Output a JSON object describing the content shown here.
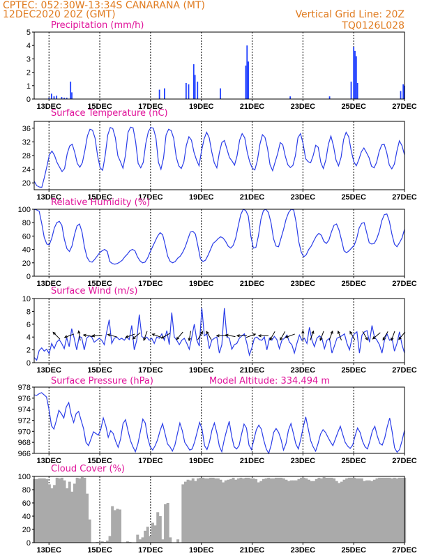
{
  "header": {
    "left1": "CPTEC:  052:30W-13:34S  CANARANA (MT)",
    "left2": "12DEC2020 20Z (GMT)",
    "right1": "Vertical Grid Line: 20Z",
    "right2": "TQ0126L028"
  },
  "model_altitude": "Model Altitude: 334.494 m",
  "x_ticks": [
    "13DEC",
    "15DEC",
    "17DEC",
    "19DEC",
    "21DEC",
    "23DEC",
    "25DEC",
    "27DEC"
  ],
  "colors": {
    "orange": "#e07b1f",
    "magenta": "#e0139a",
    "blue": "#2a3de8",
    "gray": "#aaaaaa"
  },
  "chart_data": [
    {
      "type": "bar",
      "title": "Precipitation (mm/h)",
      "ylim": [
        0,
        5
      ],
      "yticks": [
        0,
        1,
        2,
        3,
        4,
        5
      ],
      "x": [
        13.0,
        13.1,
        13.2,
        13.3,
        13.5,
        13.6,
        13.7,
        13.85,
        13.9,
        17.35,
        17.55,
        18.4,
        18.5,
        18.7,
        18.75,
        18.85,
        19.75,
        20.75,
        20.8,
        20.85,
        22.5,
        24.05,
        24.9,
        25.0,
        25.05,
        25.1,
        25.15,
        26.85,
        26.95,
        27.0
      ],
      "values": [
        0.1,
        0.4,
        0.2,
        0.25,
        0.15,
        0.1,
        0.1,
        1.3,
        0.5,
        0.7,
        0.8,
        1.2,
        1.1,
        2.6,
        1.8,
        1.3,
        0.8,
        2.5,
        4.0,
        2.8,
        0.2,
        0.2,
        1.3,
        3.9,
        3.6,
        3.2,
        1.2,
        0.6,
        1.1,
        1.0
      ]
    },
    {
      "type": "line",
      "title": "Surface Temperature (nC)",
      "ylim": [
        18,
        38
      ],
      "yticks": [
        20,
        24,
        28,
        32,
        36
      ],
      "series": [
        {
          "values": [
            20.5,
            19.2,
            18.8,
            18.7,
            21.5,
            24.8,
            28.2,
            29.3,
            28.1,
            26.0,
            24.6,
            23.3,
            24.2,
            28.5,
            30.8,
            31.3,
            28.9,
            25.7,
            24.6,
            25.9,
            29.5,
            33.8,
            35.7,
            35.4,
            33.1,
            28.0,
            24.4,
            23.7,
            28.0,
            34.0,
            36.2,
            35.9,
            33.2,
            27.9,
            26.2,
            24.3,
            28.1,
            34.8,
            36.3,
            36.1,
            32.0,
            25.7,
            24.4,
            26.0,
            31.5,
            35.0,
            36.2,
            36.0,
            33.1,
            26.0,
            24.0,
            27.3,
            34.0,
            35.7,
            35.3,
            33.1,
            27.6,
            25.0,
            24.2,
            26.1,
            31.0,
            33.5,
            32.5,
            29.0,
            26.7,
            25.0,
            29.4,
            32.9,
            34.8,
            33.2,
            29.1,
            25.9,
            24.4,
            28.8,
            31.8,
            32.4,
            29.9,
            27.4,
            26.4,
            25.2,
            28.0,
            32.5,
            34.4,
            33.2,
            29.0,
            26.1,
            24.3,
            23.8,
            26.6,
            31.3,
            34.1,
            33.3,
            30.1,
            25.3,
            23.6,
            26.1,
            28.6,
            31.8,
            31.2,
            27.8,
            25.3,
            24.5,
            25.1,
            28.0,
            33.2,
            34.4,
            31.6,
            27.1,
            26.2,
            25.9,
            28.0,
            31.0,
            30.4,
            26.0,
            24.2,
            26.8,
            31.3,
            33.7,
            30.8,
            26.7,
            25.0,
            27.5,
            32.7,
            34.8,
            33.5,
            29.4,
            26.2,
            25.0,
            26.8,
            29.1,
            30.2,
            28.9,
            27.4,
            24.9,
            24.4,
            26.0,
            29.1,
            31.1,
            31.3,
            28.9,
            25.2,
            24.1,
            25.5,
            29.3,
            32.3,
            30.9,
            28.2
          ]
        }
      ]
    },
    {
      "type": "line",
      "title": "Relative Humidity (%)",
      "ylim": [
        0,
        100
      ],
      "yticks": [
        0,
        20,
        40,
        60,
        80,
        100
      ],
      "series": [
        {
          "values": [
            100,
            99,
            97,
            79,
            58,
            48,
            47,
            57,
            72,
            80,
            82,
            76,
            55,
            41,
            37,
            45,
            62,
            75,
            78,
            66,
            43,
            28,
            22,
            21,
            25,
            30,
            35,
            38,
            40,
            37,
            22,
            19,
            18,
            19,
            21,
            24,
            29,
            33,
            38,
            40,
            38,
            29,
            23,
            20,
            21,
            27,
            36,
            44,
            52,
            60,
            65,
            62,
            47,
            30,
            22,
            20,
            22,
            27,
            30,
            36,
            44,
            55,
            66,
            67,
            63,
            45,
            26,
            22,
            24,
            31,
            40,
            49,
            52,
            56,
            59,
            57,
            52,
            45,
            42,
            46,
            57,
            75,
            92,
            100,
            98,
            90,
            60,
            42,
            43,
            60,
            85,
            98,
            100,
            95,
            80,
            56,
            45,
            44,
            57,
            70,
            85,
            95,
            100,
            99,
            80,
            52,
            36,
            29,
            32,
            40,
            45,
            53,
            60,
            64,
            61,
            52,
            49,
            54,
            66,
            76,
            78,
            69,
            54,
            38,
            35,
            38,
            42,
            46,
            56,
            72,
            79,
            80,
            65,
            50,
            48,
            49,
            56,
            67,
            83,
            92,
            93,
            82,
            63,
            48,
            44,
            50,
            57,
            70
          ]
        }
      ]
    },
    {
      "type": "line",
      "title": "Surface Wind (m/s)",
      "ylim": [
        0,
        10
      ],
      "yticks": [
        0,
        2,
        4,
        6,
        8,
        10
      ],
      "series": [
        {
          "values": [
            0.8,
            0.4,
            1.9,
            2.3,
            1.8,
            2.1,
            1.4,
            3.0,
            2.2,
            3.2,
            3.6,
            3.0,
            2.2,
            3.9,
            2.5,
            5.3,
            3.8,
            2.0,
            4.1,
            3.9,
            2.0,
            3.8,
            4.2,
            4.0,
            3.2,
            3.5,
            3.8,
            3.5,
            2.8,
            4.8,
            6.7,
            3.0,
            3.8,
            4.0,
            3.6,
            3.8,
            3.5,
            4.0,
            3.6,
            5.8,
            2.0,
            3.5,
            7.5,
            4.1,
            3.8,
            4.0,
            3.5,
            3.8,
            3.0,
            4.0,
            3.8,
            4.5,
            3.5,
            5.0,
            2.8,
            7.8,
            4.0,
            3.5,
            2.8,
            3.5,
            3.8,
            3.0,
            2.1,
            4.0,
            6.0,
            3.5,
            2.6,
            8.5,
            4.2,
            4.5,
            2.2,
            3.5,
            3.8,
            4.0,
            1.5,
            2.8,
            8.5,
            4.0,
            3.8,
            2.1,
            2.8,
            3.0,
            3.8,
            4.2,
            4.5,
            3.0,
            1.2,
            2.3,
            3.8,
            4.0,
            3.6,
            3.5,
            4.0,
            2.0,
            3.8,
            3.5,
            4.1,
            3.6,
            2.2,
            3.5,
            3.8,
            4.3,
            3.2,
            2.8,
            1.5,
            3.0,
            4.3,
            3.5,
            3.8,
            3.0,
            5.5,
            3.5,
            2.5,
            3.8,
            4.2,
            3.8,
            2.2,
            3.5,
            3.8,
            1.5,
            2.6,
            3.8,
            4.0,
            4.2,
            4.5,
            3.0,
            2.0,
            3.8,
            4.5,
            4.8,
            1.5,
            4.3,
            4.8,
            5.0,
            3.2,
            5.8,
            4.0,
            3.5,
            2.8,
            1.5,
            3.5,
            4.5,
            3.5,
            3.8,
            1.8,
            3.0,
            4.8,
            2.8,
            1.5
          ]
        }
      ],
      "arrow_days": [
        13.3,
        13.8,
        14.2,
        14.55,
        14.9,
        15.5,
        16.2,
        16.45,
        16.8,
        17.25,
        17.6,
        18.15,
        18.55,
        18.95,
        19.3,
        19.8,
        20.15,
        20.6,
        20.95,
        21.45,
        21.8,
        22.2,
        22.5,
        23.0,
        23.35,
        23.75,
        24.1,
        24.45,
        24.95,
        25.45,
        25.9,
        26.25,
        26.55,
        26.9
      ],
      "arrow_dirs": [
        135,
        200,
        100,
        170,
        180,
        165,
        200,
        220,
        250,
        160,
        210,
        230,
        260,
        60,
        120,
        180,
        170,
        180,
        20,
        180,
        240,
        240,
        200,
        90,
        70,
        250,
        70,
        110,
        120,
        300,
        220,
        240,
        250,
        230
      ]
    },
    {
      "type": "line",
      "title": "Surface Pressure (hPa)",
      "ylim": [
        966,
        978
      ],
      "yticks": [
        966,
        968,
        970,
        972,
        974,
        976,
        978
      ],
      "series": [
        {
          "values": [
            976.6,
            976.5,
            976.8,
            977.0,
            976.6,
            976.2,
            974.0,
            971.0,
            970.4,
            972.0,
            973.8,
            973.2,
            972.4,
            974.4,
            975.2,
            973.0,
            971.6,
            973.2,
            973.6,
            972.0,
            970.5,
            968.0,
            967.4,
            968.6,
            969.9,
            969.6,
            969.3,
            970.4,
            972.4,
            971.0,
            968.9,
            970.1,
            969.6,
            968.2,
            967.1,
            968.6,
            971.4,
            972.1,
            970.1,
            968.3,
            967.2,
            966.3,
            967.7,
            969.9,
            972.2,
            971.5,
            968.8,
            967.2,
            966.6,
            967.4,
            968.5,
            970.1,
            971.4,
            969.6,
            967.7,
            967.2,
            966.4,
            967.5,
            969.5,
            971.5,
            970.1,
            968.0,
            967.3,
            966.6,
            966.8,
            968.1,
            969.8,
            971.6,
            970.4,
            967.4,
            966.7,
            968.0,
            970.2,
            971.5,
            969.7,
            967.3,
            966.3,
            968.5,
            970.2,
            971.8,
            969.1,
            967.2,
            966.8,
            967.4,
            969.5,
            971.3,
            970.6,
            967.5,
            966.7,
            968.5,
            970.3,
            971.1,
            970.4,
            968.4,
            966.8,
            966.0,
            967.5,
            969.8,
            970.5,
            969.8,
            968.5,
            966.6,
            967.8,
            970.2,
            971.4,
            969.6,
            967.7,
            966.8,
            968.6,
            970.8,
            972.6,
            970.5,
            968.3,
            967.2,
            966.4,
            967.8,
            969.5,
            970.3,
            969.8,
            968.9,
            968.1,
            967.4,
            968.6,
            969.8,
            970.9,
            969.4,
            968.0,
            967.3,
            966.9,
            967.5,
            969.2,
            970.6,
            969.8,
            968.2,
            967.2,
            966.8,
            968.3,
            970.1,
            970.9,
            969.1,
            967.8,
            967.5,
            968.8,
            970.8,
            972.4,
            969.9,
            967.0,
            966.2,
            966.7,
            968.3,
            970.2
          ]
        }
      ]
    },
    {
      "type": "area",
      "title": "Cloud Cover (%)",
      "ylim": [
        0,
        100
      ],
      "yticks": [
        0,
        20,
        40,
        60,
        80,
        100
      ],
      "series": [
        {
          "values": [
            96,
            96,
            97,
            97,
            97,
            96,
            88,
            82,
            87,
            98,
            97,
            98,
            94,
            82,
            92,
            77,
            89,
            98,
            97,
            99,
            98,
            74,
            35,
            0,
            0,
            1,
            0,
            2,
            1,
            3,
            10,
            55,
            49,
            51,
            50,
            0,
            0,
            2,
            1,
            0,
            0,
            12,
            5,
            8,
            18,
            24,
            10,
            30,
            26,
            46,
            40,
            5,
            58,
            60,
            8,
            0,
            0,
            5,
            0,
            88,
            92,
            95,
            94,
            97,
            93,
            97,
            98,
            98,
            97,
            97,
            98,
            98,
            97,
            97,
            95,
            91,
            94,
            95,
            96,
            98,
            95,
            97,
            98,
            97,
            98,
            98,
            97,
            97,
            96,
            91,
            93,
            96,
            97,
            98,
            97,
            97,
            98,
            98,
            98,
            97,
            95,
            93,
            94,
            94,
            94,
            96,
            98,
            98,
            97,
            95,
            93,
            93,
            96,
            98,
            97,
            99,
            98,
            98,
            98,
            97,
            93,
            90,
            92,
            95,
            97,
            98,
            98,
            98,
            97,
            97,
            97,
            93,
            94,
            94,
            93,
            95,
            97,
            98,
            98,
            98,
            98,
            98,
            97,
            98,
            97,
            98,
            98,
            98
          ]
        }
      ]
    }
  ]
}
